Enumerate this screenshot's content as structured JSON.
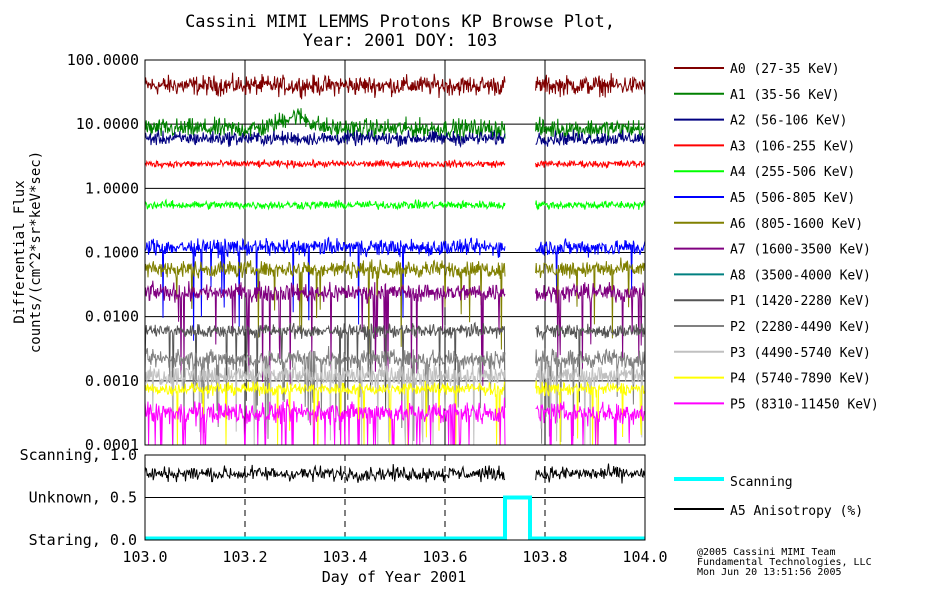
{
  "chart_data": {
    "type": "line",
    "title": "Cassini MIMI LEMMS Protons KP Browse Plot,",
    "subtitle": "Year: 2001 DOY: 103",
    "xlabel": "Day of Year 2001",
    "ylabel": "Differential Flux",
    "ylabel2": "counts/(cm^2*sr*keV*sec)",
    "xlim": [
      103.0,
      104.0
    ],
    "ylim": [
      0.0001,
      100.0
    ],
    "yscale": "log",
    "x_ticks": [
      "103.0",
      "103.2",
      "103.4",
      "103.6",
      "103.8",
      "104.0"
    ],
    "y_ticks": [
      {
        "value": 100,
        "label": "100.0000"
      },
      {
        "value": 10,
        "label": "10.0000"
      },
      {
        "value": 1,
        "label": "1.0000"
      },
      {
        "value": 0.1,
        "label": "0.1000"
      },
      {
        "value": 0.01,
        "label": "0.0100"
      },
      {
        "value": 0.001,
        "label": "0.0010"
      },
      {
        "value": 0.0001,
        "label": "0.0001"
      }
    ],
    "data_gap": [
      103.72,
      103.78
    ],
    "series": [
      {
        "name": "A0 (27-35 KeV)",
        "color": "#800000",
        "level": 40,
        "noise": 0.14,
        "dips": 0
      },
      {
        "name": "A1 (35-56 KeV)",
        "color": "#008000",
        "level": 8.5,
        "noise": 0.14,
        "dips": 0,
        "bump": true
      },
      {
        "name": "A2 (56-106 KeV)",
        "color": "#000080",
        "level": 6,
        "noise": 0.1,
        "dips": 0
      },
      {
        "name": "A3 (106-255 KeV)",
        "color": "#ff0000",
        "level": 2.4,
        "noise": 0.05,
        "dips": 0
      },
      {
        "name": "A4 (255-506 KeV)",
        "color": "#00ff00",
        "level": 0.55,
        "noise": 0.06,
        "dips": 0
      },
      {
        "name": "A5 (506-805 KeV)",
        "color": "#0000ff",
        "level": 0.12,
        "noise": 0.12,
        "dips": 0.02
      },
      {
        "name": "A6 (805-1600 KeV)",
        "color": "#808000",
        "level": 0.055,
        "noise": 0.12,
        "dips": 0.03
      },
      {
        "name": "A7 (1600-3500 KeV)",
        "color": "#800080",
        "level": 0.024,
        "noise": 0.13,
        "dips": 0.05
      },
      {
        "name": "A8 (3500-4000 KeV)",
        "color": "#008080",
        "level": null,
        "noise": 0,
        "dips": 0
      },
      {
        "name": "P1 (1420-2280 KeV)",
        "color": "#555555",
        "level": 0.006,
        "noise": 0.1,
        "dips": 0.02
      },
      {
        "name": "P2 (2280-4490 KeV)",
        "color": "#808080",
        "level": 0.0022,
        "noise": 0.13,
        "dips": 0.05
      },
      {
        "name": "P3 (4490-5740 KeV)",
        "color": "#c0c0c0",
        "level": 0.0012,
        "noise": 0.15,
        "dips": 0.03
      },
      {
        "name": "P4 (5740-7890 KeV)",
        "color": "#ffff00",
        "level": 0.00075,
        "noise": 0.09,
        "dips": 0.03
      },
      {
        "name": "P5 (8310-11450 KeV)",
        "color": "#ff00ff",
        "level": 0.00032,
        "noise": 0.15,
        "dips": 0.08
      }
    ],
    "bottom_panel": {
      "ylim": [
        0.0,
        1.0
      ],
      "y_ticks": [
        {
          "value": 1.0,
          "label": "Scanning, 1.0"
        },
        {
          "value": 0.5,
          "label": "Unknown, 0.5"
        },
        {
          "value": 0.0,
          "label": "Staring, 0.0"
        }
      ],
      "grid_x": [
        103.2,
        103.4,
        103.6,
        103.8
      ],
      "scanning": {
        "name": "Scanning",
        "color": "#00ffff",
        "x": [
          103.0,
          103.72,
          103.72,
          103.77,
          103.77,
          104.0
        ],
        "y": [
          0.0,
          0.0,
          0.5,
          0.5,
          0.0,
          0.0
        ]
      },
      "anisotropy": {
        "name": "A5 Anisotropy (%)",
        "color": "#000000",
        "level": 0.78,
        "amp": 0.07
      }
    }
  },
  "credits": [
    "@2005 Cassini MIMI Team",
    "Fundamental Technologies, LLC",
    "Mon Jun 20 13:51:56 2005"
  ]
}
